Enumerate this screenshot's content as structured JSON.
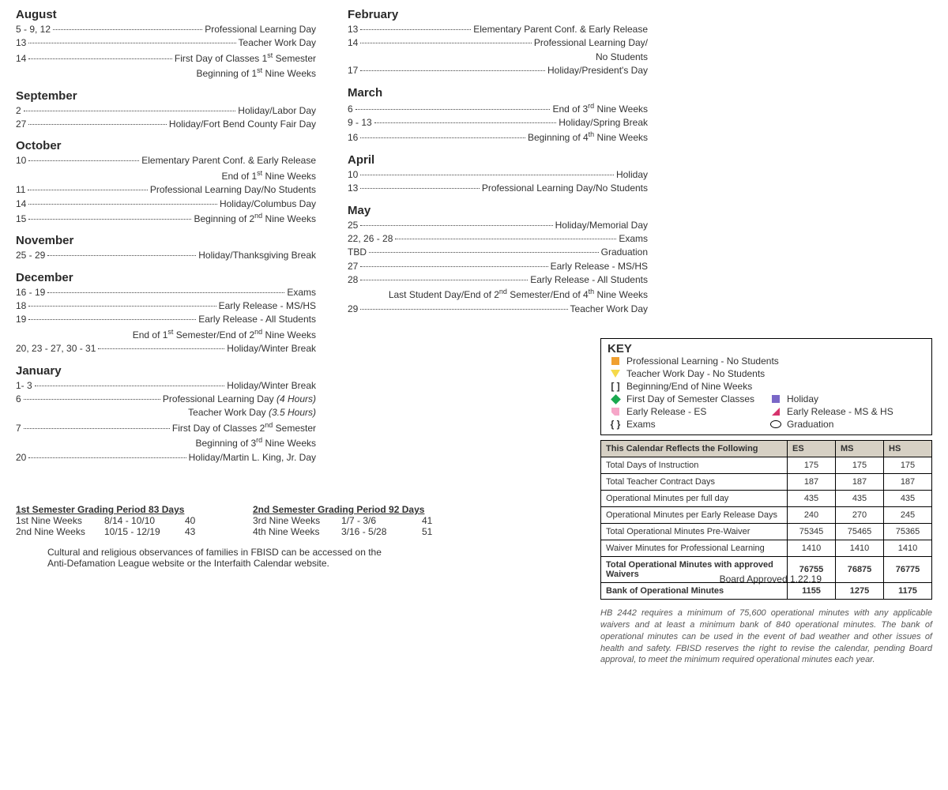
{
  "leftMonths": [
    {
      "name": "August",
      "entries": [
        {
          "date": "5 - 9, 12",
          "desc": "Professional Learning Day"
        },
        {
          "date": "13",
          "desc": "Teacher Work Day"
        },
        {
          "date": "14",
          "desc": "First Day of Classes 1<sup>st</sup> Semester"
        },
        {
          "nodate": true,
          "desc": "Beginning of 1<sup>st</sup> Nine Weeks"
        }
      ]
    },
    {
      "name": "September",
      "entries": [
        {
          "date": "2",
          "desc": "Holiday/Labor Day"
        },
        {
          "date": "27",
          "desc": "Holiday/Fort Bend County Fair Day"
        }
      ]
    },
    {
      "name": "October",
      "entries": [
        {
          "date": "10",
          "desc": "Elementary Parent Conf. & Early Release"
        },
        {
          "nodate": true,
          "desc": "End of 1<sup>st</sup> Nine Weeks"
        },
        {
          "date": "11",
          "desc": "Professional Learning Day/No Students"
        },
        {
          "date": "14",
          "desc": "Holiday/Columbus Day"
        },
        {
          "date": "15",
          "desc": "Beginning of 2<sup>nd</sup> Nine Weeks"
        }
      ]
    },
    {
      "name": "November",
      "entries": [
        {
          "date": "25 - 29",
          "desc": "Holiday/Thanksgiving Break"
        }
      ]
    },
    {
      "name": "December",
      "entries": [
        {
          "date": "16 - 19",
          "desc": "Exams"
        },
        {
          "date": "18",
          "desc": "Early Release - MS/HS"
        },
        {
          "date": "19",
          "desc": "Early Release - All Students"
        },
        {
          "nodate": true,
          "desc": "End of 1<sup>st</sup> Semester/End of 2<sup>nd</sup> Nine Weeks"
        },
        {
          "date": "20, 23 - 27, 30 - 31",
          "desc": "Holiday/Winter Break"
        }
      ]
    },
    {
      "name": "January",
      "entries": [
        {
          "date": "1- 3",
          "desc": "Holiday/Winter Break"
        },
        {
          "date": "6",
          "desc": "Professional Learning Day <span class='italic'>(4 Hours)</span>"
        },
        {
          "nodate": true,
          "desc": "Teacher Work Day <span class='italic'>(3.5 Hours)</span>"
        },
        {
          "date": "7",
          "desc": "First Day of Classes 2<sup>nd</sup> Semester"
        },
        {
          "nodate": true,
          "desc": "Beginning of 3<sup>rd</sup> Nine Weeks"
        },
        {
          "date": "20",
          "desc": "Holiday/Martin L. King, Jr. Day"
        }
      ]
    }
  ],
  "rightMonths": [
    {
      "name": "February",
      "entries": [
        {
          "date": "13",
          "desc": "Elementary Parent Conf. & Early Release"
        },
        {
          "date": "14",
          "desc": "Professional Learning Day/"
        },
        {
          "nodate": true,
          "desc": "No Students"
        },
        {
          "date": "17",
          "desc": "Holiday/President's Day"
        }
      ]
    },
    {
      "name": "March",
      "entries": [
        {
          "date": "6",
          "desc": "End of 3<sup>rd</sup> Nine Weeks"
        },
        {
          "date": "9 - 13",
          "desc": "Holiday/Spring Break"
        },
        {
          "date": "16",
          "desc": "Beginning of 4<sup>th</sup> Nine Weeks"
        }
      ]
    },
    {
      "name": "April",
      "entries": [
        {
          "date": "10",
          "desc": "Holiday"
        },
        {
          "date": "13",
          "desc": "Professional Learning Day/No Students"
        }
      ]
    },
    {
      "name": "May",
      "entries": [
        {
          "date": "25",
          "desc": "Holiday/Memorial Day"
        },
        {
          "date": "22, 26 - 28",
          "desc": "Exams"
        },
        {
          "date": "TBD",
          "desc": "Graduation"
        },
        {
          "date": "27",
          "desc": "Early Release - MS/HS"
        },
        {
          "date": "28",
          "desc": "Early Release - All Students"
        },
        {
          "nodate": true,
          "desc": "Last Student Day/End of 2<sup>nd</sup> Semester/End of 4<sup>th</sup> Nine Weeks"
        },
        {
          "date": "29",
          "desc": "Teacher Work Day"
        }
      ]
    }
  ],
  "grading": {
    "left": {
      "header": "1st Semester Grading Period    83 Days",
      "rows": [
        {
          "a": "1st Nine Weeks",
          "b": "8/14 - 10/10",
          "c": "40"
        },
        {
          "a": "2nd Nine Weeks",
          "b": "10/15 - 12/19",
          "c": "43"
        }
      ]
    },
    "right": {
      "header": "2nd Semester Grading Period  92 Days",
      "rows": [
        {
          "a": "3rd Nine Weeks",
          "b": "1/7 - 3/6",
          "c": "41"
        },
        {
          "a": "4th Nine Weeks",
          "b": "3/16 - 5/28",
          "c": "51"
        }
      ]
    }
  },
  "notesLine1": "Cultural and religious observances of families in FBISD can be accessed on the",
  "notesLine2": "Anti-Defamation League website or the Interfaith Calendar website.",
  "approved": "Board Approved  1.22.19",
  "key": {
    "title": "KEY",
    "items": {
      "profLearning": "Professional Learning - No Students",
      "teacherWork": "Teacher Work Day - No Students",
      "nineWeeks": "Beginning/End of Nine Weeks",
      "firstDay": "First Day of Semester Classes",
      "holiday": "Holiday",
      "earlyES": "Early Release - ES",
      "earlyMSHS": "Early Release - MS & HS",
      "exams": "Exams",
      "grad": "Graduation"
    }
  },
  "table": {
    "header": {
      "label": "This Calendar Reflects the Following",
      "es": "ES",
      "ms": "MS",
      "hs": "HS"
    },
    "rows": [
      {
        "label": "Total Days of Instruction",
        "es": "175",
        "ms": "175",
        "hs": "175"
      },
      {
        "label": "Total Teacher Contract Days",
        "es": "187",
        "ms": "187",
        "hs": "187"
      },
      {
        "label": "Operational Minutes per full day",
        "es": "435",
        "ms": "435",
        "hs": "435"
      },
      {
        "label": "Operational Minutes per Early Release Days",
        "es": "240",
        "ms": "270",
        "hs": "245"
      },
      {
        "label": "Total Operational Minutes Pre-Waiver",
        "es": "75345",
        "ms": "75465",
        "hs": "75365"
      },
      {
        "label": "Waiver Minutes for Professional Learning",
        "es": "1410",
        "ms": "1410",
        "hs": "1410"
      },
      {
        "label": "Total Operational Minutes with approved Waivers",
        "es": "76755",
        "ms": "76875",
        "hs": "76775",
        "bold": true
      },
      {
        "label": "Bank of Operational Minutes",
        "es": "1155",
        "ms": "1275",
        "hs": "1175",
        "bold": true
      }
    ]
  },
  "footnote": "HB 2442 requires a minimum of 75,600 operational minutes with any applicable waivers and at least a minimum bank of 840 operational minutes. The bank of operational minutes can be used in the event of bad weather and other issues of health and safety. FBISD reserves the right to revise the calendar, pending Board approval, to meet the minimum required operational minutes each year."
}
